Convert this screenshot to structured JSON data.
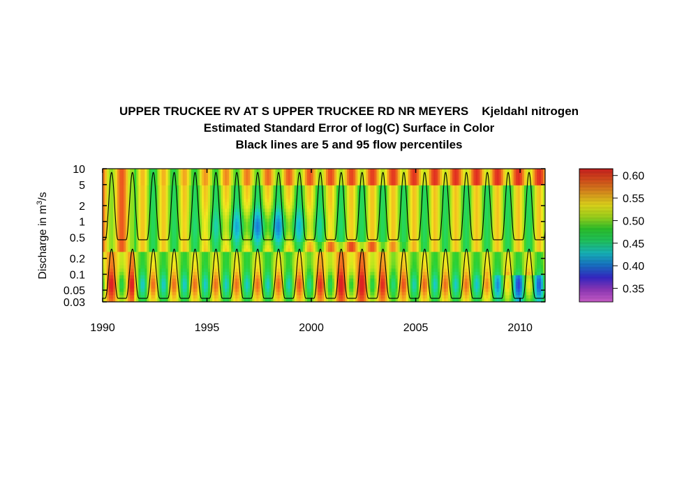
{
  "chart_data": [
    {
      "type": "heatmap",
      "title_line1_site": "UPPER TRUCKEE RV AT S UPPER TRUCKEE RD NR MEYERS",
      "title_line1_param": "Kjeldahl nitrogen",
      "title_line2": "Estimated Standard Error of log(C) Surface in Color",
      "title_line3": "Black lines are 5 and 95 flow percentiles",
      "ylabel": "Discharge in m³/s",
      "xlim": [
        1990,
        2011.2
      ],
      "ylim": [
        0.03,
        10
      ],
      "y_scale": "log",
      "x_ticks": [
        "1990",
        "1995",
        "2000",
        "2005",
        "2010"
      ],
      "y_ticks": [
        "10",
        "5",
        "2",
        "1",
        "0.5",
        "0.2",
        "0.1",
        "0.05",
        "0.03"
      ],
      "colorbar": {
        "ticks": [
          "0.60",
          "0.55",
          "0.50",
          "0.45",
          "0.40",
          "0.35"
        ],
        "range": [
          0.32,
          0.615
        ],
        "colors": [
          "#dd66dd",
          "#9a3cc8",
          "#3a2bd6",
          "#1a7ad8",
          "#19c8d0",
          "#23d86a",
          "#2ed02e",
          "#a8e21e",
          "#f2e81e",
          "#f2a020",
          "#ec5a1e",
          "#dd2222"
        ]
      },
      "series": [
        {
          "name": "95 flow percentile",
          "peak_discharge": 8.5,
          "low_discharge": 0.45
        },
        {
          "name": "5 flow percentile",
          "peak_discharge": 0.3,
          "low_discharge": 0.035
        }
      ],
      "grid": false
    }
  ]
}
